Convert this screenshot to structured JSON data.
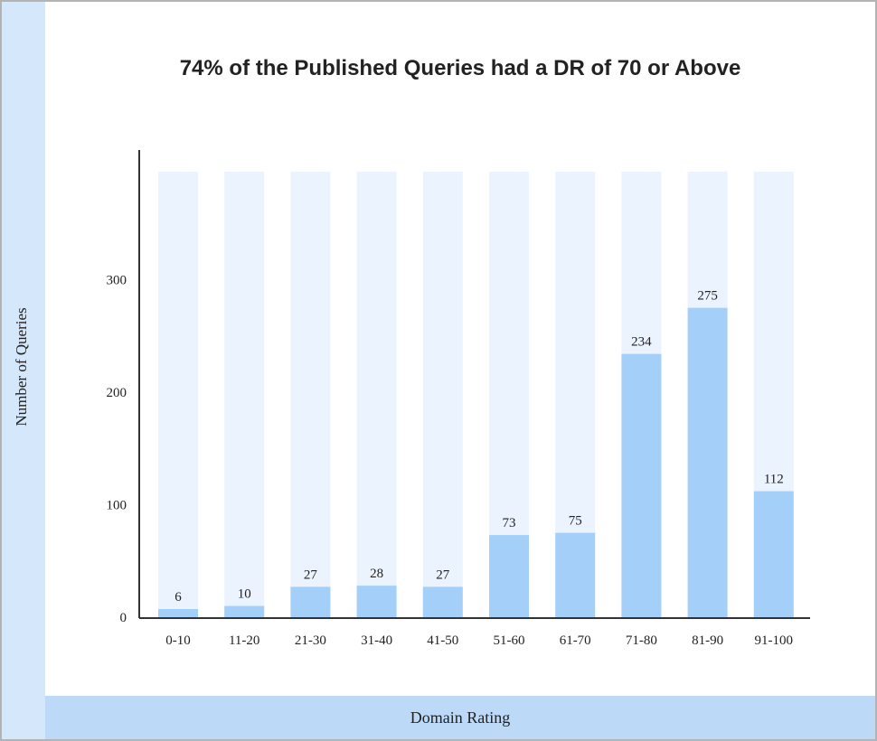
{
  "chart_data": {
    "type": "bar",
    "title_bold": "74%",
    "title_rest": " of the Published Queries had a DR of 70 or Above",
    "xlabel": "Domain Rating",
    "ylabel": "Number of Queries",
    "categories": [
      "0-10",
      "11-20",
      "21-30",
      "31-40",
      "41-50",
      "51-60",
      "61-70",
      "71-80",
      "81-90",
      "91-100"
    ],
    "values": [
      6,
      10,
      27,
      28,
      27,
      73,
      75,
      234,
      275,
      112
    ],
    "value_labels": [
      "6",
      "10",
      "27",
      "28",
      "27",
      "73",
      "75",
      "234",
      "275",
      "112"
    ],
    "yticks": [
      0,
      100,
      200,
      300
    ],
    "ytick_labels": [
      "0",
      "100",
      "200",
      "300"
    ],
    "ylim": [
      0,
      395
    ],
    "grid": false,
    "legend": "none",
    "colors": {
      "bar": "#a4cff9",
      "bar_track": "#eaf3fe",
      "axis": "#333333",
      "band_left": "#d4e7fb",
      "band_bottom": "#bcdaf8",
      "frame": "#b3b3b3"
    }
  }
}
